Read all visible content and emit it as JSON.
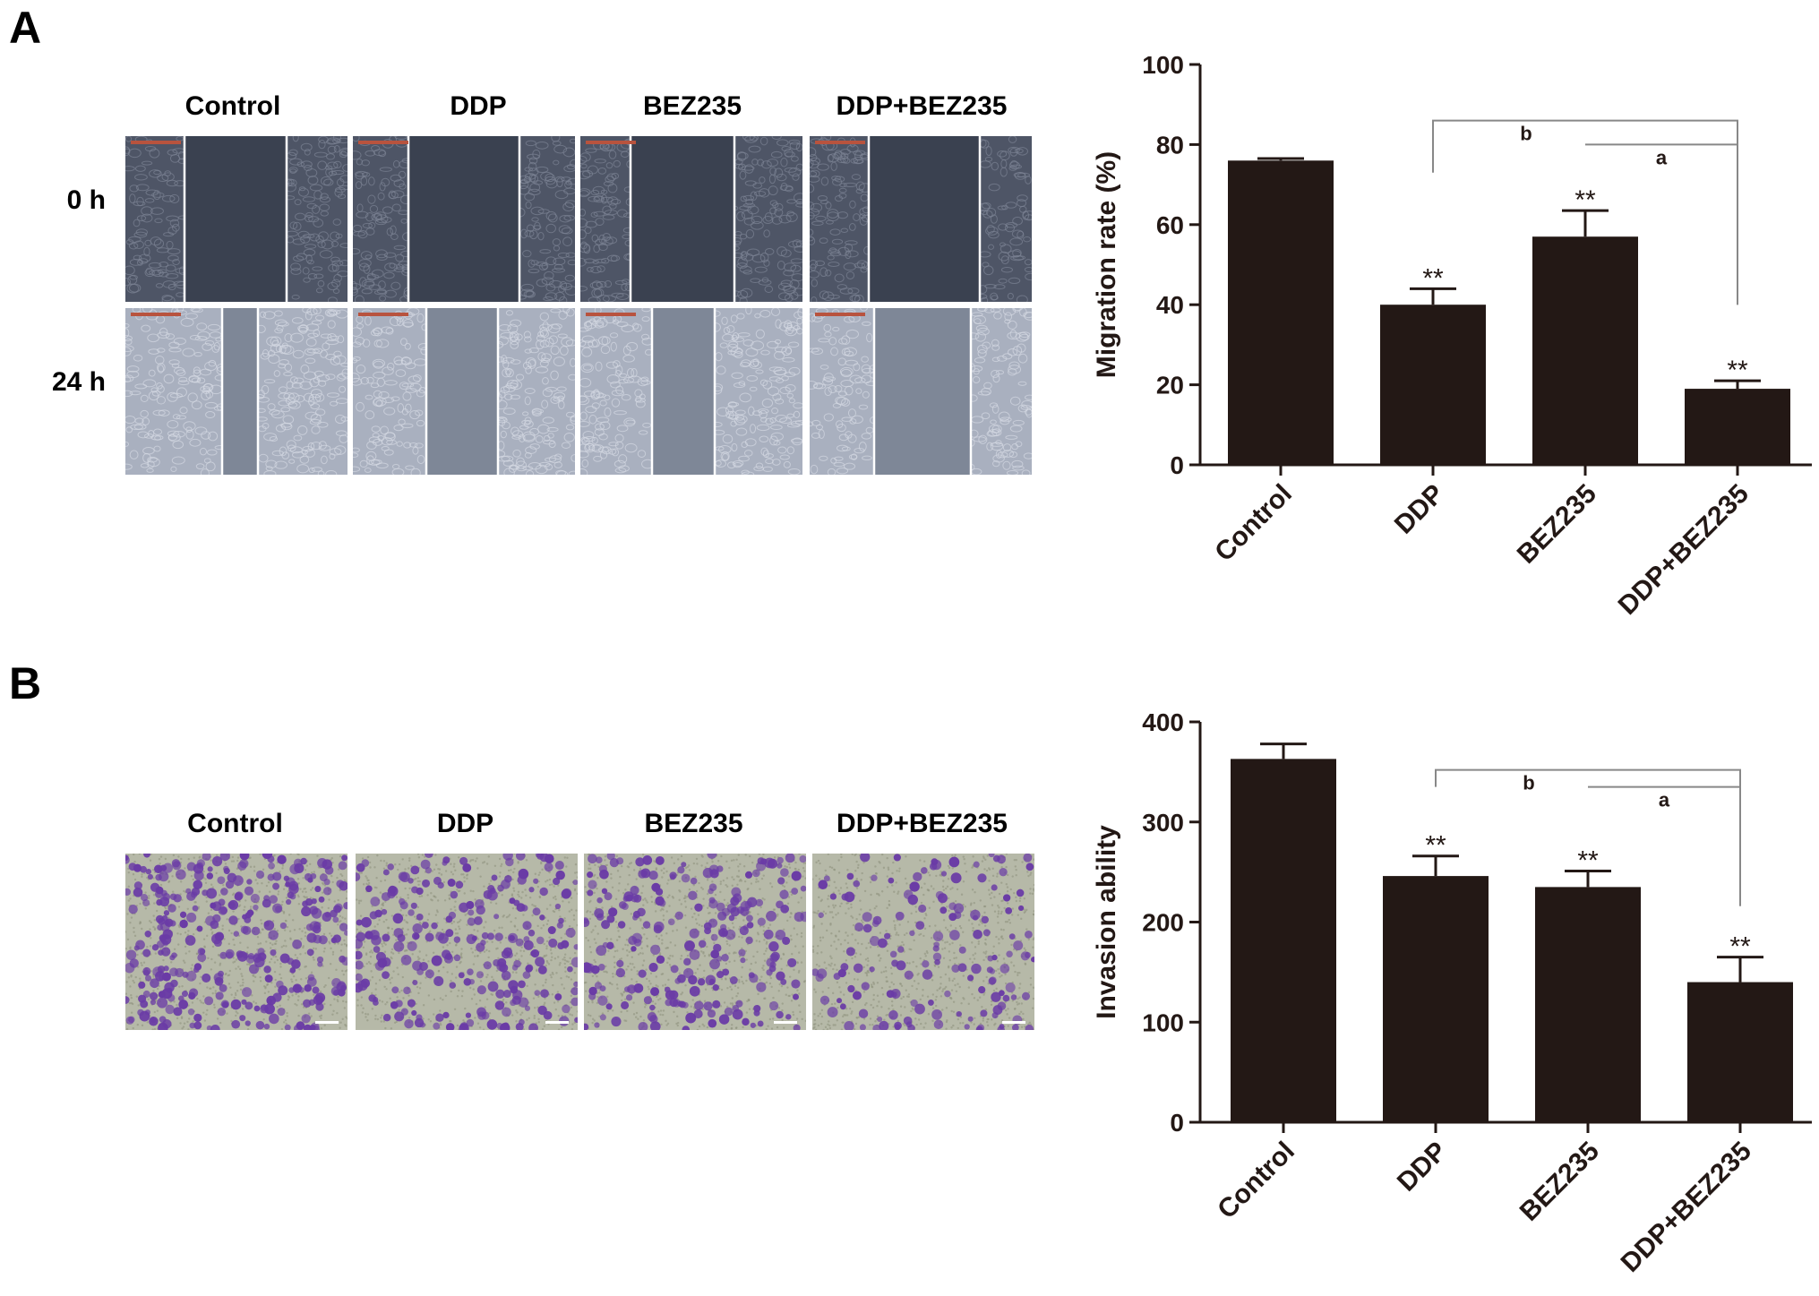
{
  "panels": [
    {
      "letter": "A",
      "groups": [
        "Control",
        "DDP",
        "BEZ235",
        "DDP+BEZ235"
      ],
      "rows": [
        "0 h",
        "24 h"
      ]
    },
    {
      "letter": "B",
      "groups": [
        "Control",
        "DDP",
        "BEZ235",
        "DDP+BEZ235"
      ]
    }
  ],
  "colors": {
    "bar": "#231815",
    "axis": "#231815",
    "bracket": "#888888",
    "scratch_dark": "#3a4150",
    "scratch_cells": "#4e5566",
    "wound_24h": "#7e8797",
    "cells_24h": "#a9b0bf",
    "transwell_bg": "#b6b9a8",
    "transwell_cell": "#6a3ba6"
  },
  "chart_data": [
    {
      "type": "bar",
      "categories": [
        "Control",
        "DDP",
        "BEZ235",
        "DDP+BEZ235"
      ],
      "values": [
        76,
        40,
        57,
        19
      ],
      "errors": [
        0.5,
        4,
        6.5,
        2
      ],
      "ylabel": "Migration rate (%)",
      "ylim": [
        0,
        100
      ],
      "yticks": [
        0,
        20,
        40,
        60,
        80,
        100
      ],
      "significance": [
        "",
        "**",
        "**",
        "**"
      ],
      "brackets": [
        {
          "from": "DDP",
          "to": "DDP+BEZ235",
          "label": "b"
        },
        {
          "from": "BEZ235",
          "to": "DDP+BEZ235",
          "label": "a"
        }
      ]
    },
    {
      "type": "bar",
      "categories": [
        "Control",
        "DDP",
        "BEZ235",
        "DDP+BEZ235"
      ],
      "values": [
        363,
        246,
        235,
        140
      ],
      "errors": [
        15,
        20,
        16,
        25
      ],
      "ylabel": "Invasion ability",
      "ylim": [
        0,
        400
      ],
      "yticks": [
        0,
        100,
        200,
        300,
        400
      ],
      "significance": [
        "",
        "**",
        "**",
        "**"
      ],
      "brackets": [
        {
          "from": "DDP",
          "to": "DDP+BEZ235",
          "label": "b"
        },
        {
          "from": "BEZ235",
          "to": "DDP+BEZ235",
          "label": "a"
        }
      ]
    }
  ]
}
